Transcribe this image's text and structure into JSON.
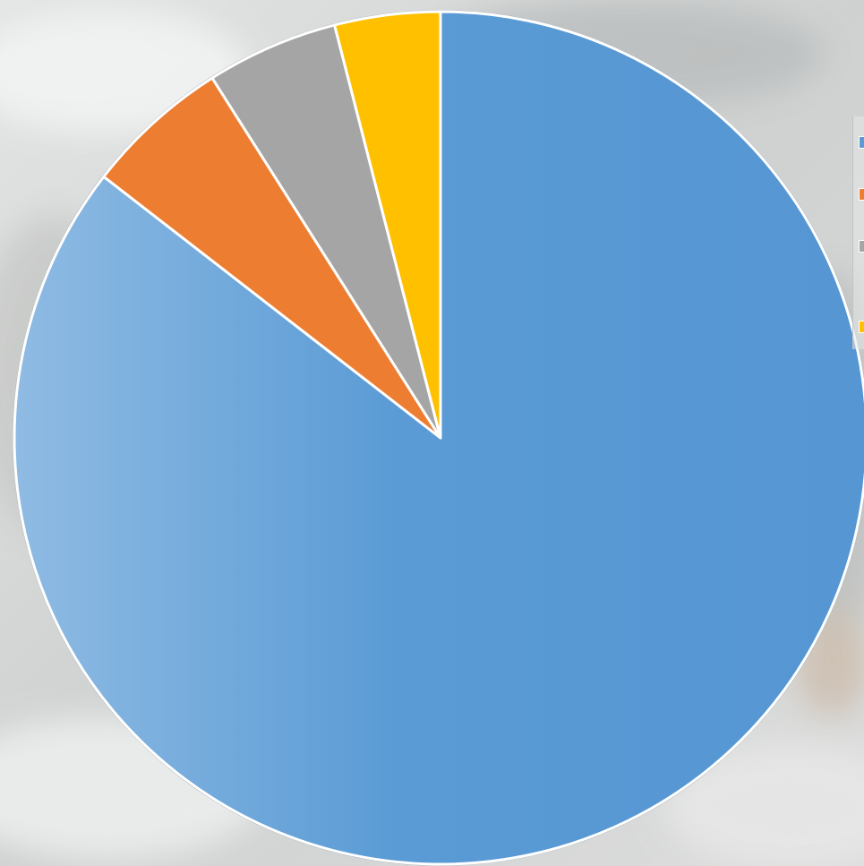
{
  "colors": {
    "series_1": "#5a9bd5",
    "series_2": "#ed7d31",
    "series_3": "#a5a5a5",
    "series_4": "#ffc000",
    "slice_border": "#ffffff",
    "outline": "#9aa7b1"
  },
  "chart_data": {
    "type": "pie",
    "start_angle_deg": 0,
    "direction": "clockwise",
    "legend_position": "right",
    "slices": [
      {
        "color": "#5a9bd5",
        "value": 0.855
      },
      {
        "color": "#ed7d31",
        "value": 0.055
      },
      {
        "color": "#a5a5a5",
        "value": 0.05
      },
      {
        "color": "#ffc000",
        "value": 0.04
      }
    ]
  },
  "legend": {
    "items": [
      {
        "color": "#5a9bd5",
        "label": ""
      },
      {
        "color": "#ed7d31",
        "label": ""
      },
      {
        "color": "#a5a5a5",
        "label": ""
      },
      {
        "color": "#ffc000",
        "label": ""
      }
    ]
  }
}
